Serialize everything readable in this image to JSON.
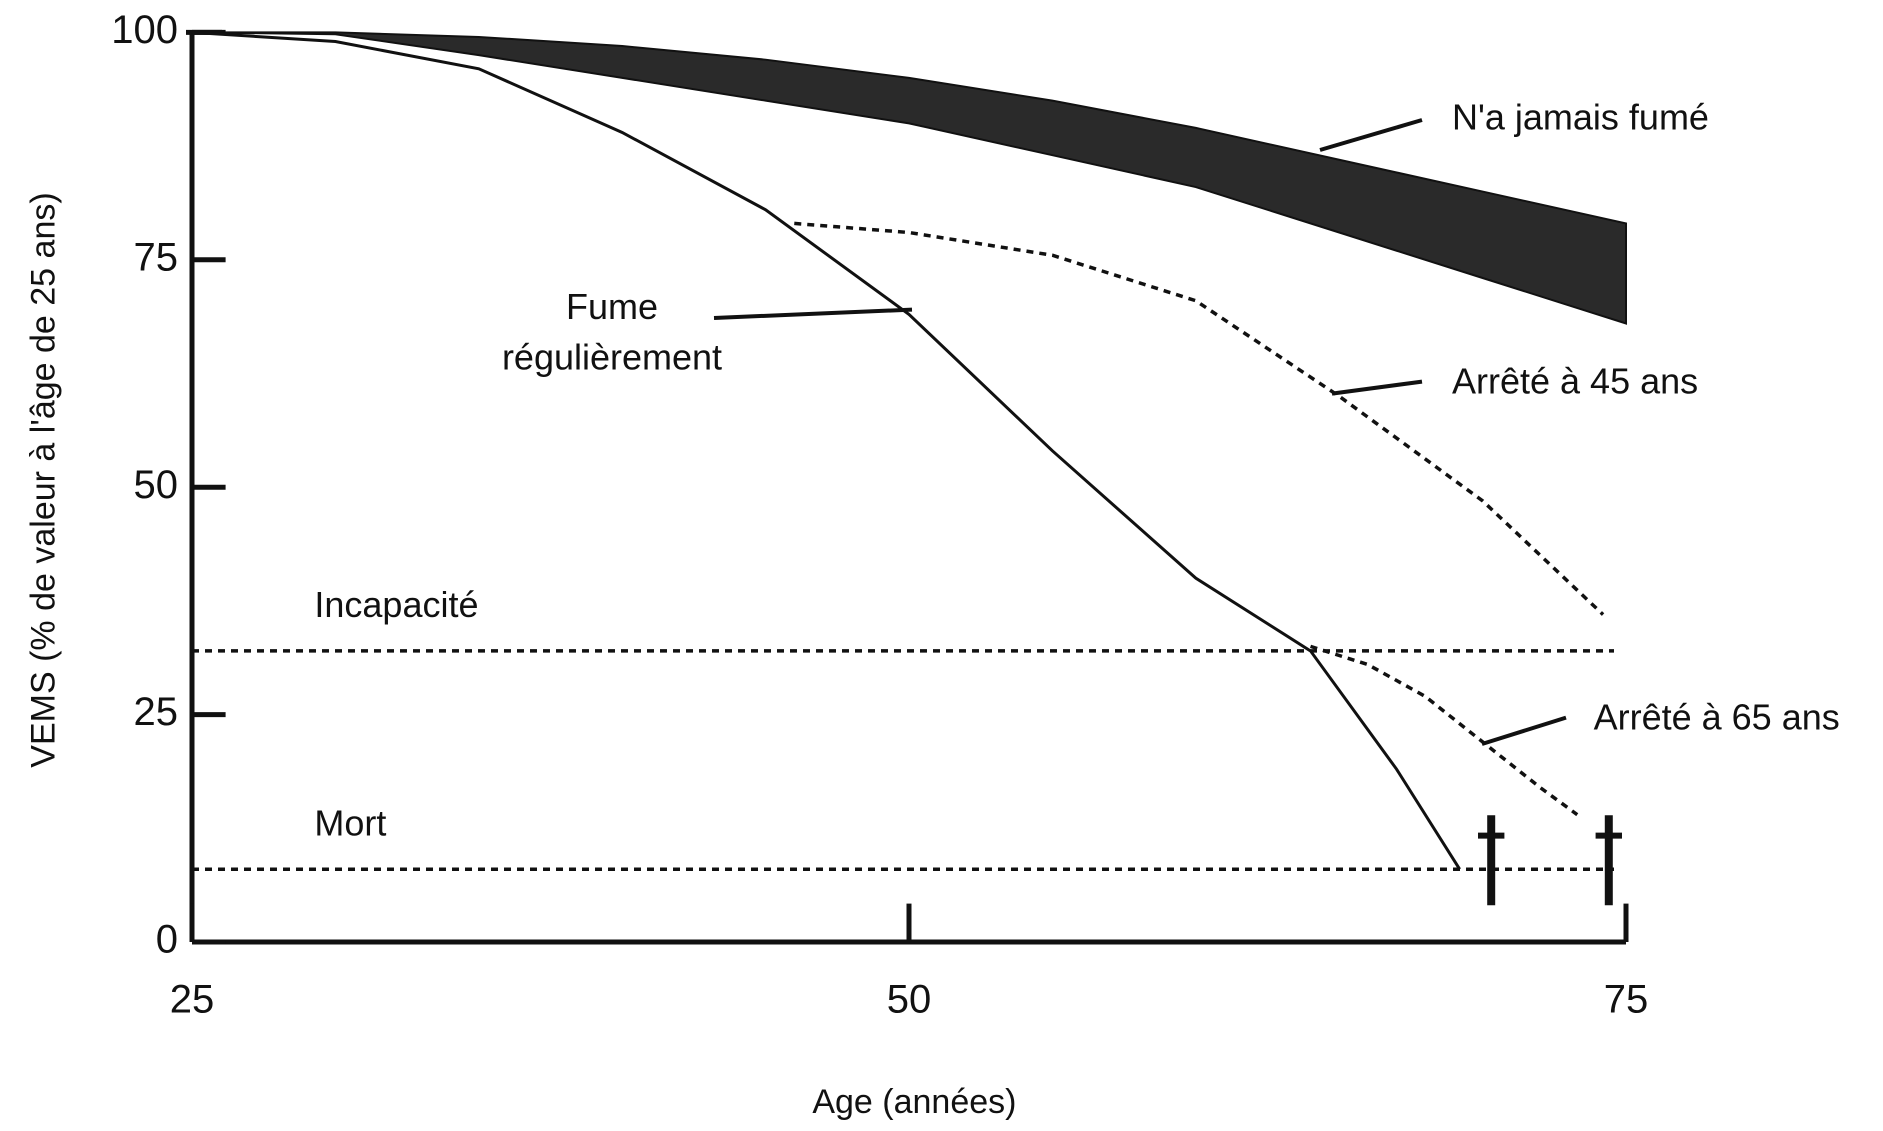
{
  "chart_data": {
    "type": "line",
    "xlabel": "Age (années)",
    "ylabel": "VEMS (% de valeur à l'âge de 25 ans)",
    "xlim": [
      25,
      75
    ],
    "ylim": [
      0,
      100
    ],
    "xticks": [
      25,
      50,
      75
    ],
    "yticks": [
      0,
      25,
      50,
      75,
      100
    ],
    "band": {
      "name": "N'a jamais fumé",
      "color": "#2a2a2a",
      "x": [
        25,
        30,
        35,
        40,
        45,
        50,
        55,
        60,
        65,
        70,
        75
      ],
      "upper": [
        100,
        100,
        99.5,
        98.5,
        97,
        95,
        92.5,
        89.5,
        86,
        82.5,
        79
      ],
      "lower": [
        100,
        99.8,
        97.5,
        95,
        92.5,
        90,
        86.5,
        83,
        78,
        73,
        68
      ]
    },
    "series": [
      {
        "name": [
          "Fume",
          "régulièrement"
        ],
        "color": "#111",
        "dashed": false,
        "x": [
          25,
          30,
          35,
          40,
          45,
          50,
          55,
          60,
          64,
          67,
          69.2
        ],
        "values": [
          100,
          99,
          96,
          89,
          80.5,
          69,
          54,
          40,
          32,
          19,
          8
        ]
      },
      {
        "name": "Arrêté à 45 ans",
        "color": "#111",
        "dashed": true,
        "x": [
          46,
          50,
          55,
          60,
          65,
          70,
          74.2
        ],
        "values": [
          79,
          78,
          75.5,
          70.5,
          60,
          48.5,
          36
        ]
      },
      {
        "name": "Arrêté à 65 ans",
        "color": "#111",
        "dashed": true,
        "x": [
          64,
          66,
          68,
          70,
          72,
          73.3
        ],
        "values": [
          32.5,
          30.5,
          27,
          22,
          17,
          14
        ]
      }
    ],
    "hlines": [
      {
        "name": "Incapacité",
        "value": 32
      },
      {
        "name": "Mort",
        "value": 8
      }
    ],
    "death_markers": {
      "x": [
        70.3,
        74.4
      ],
      "values": [
        8,
        8
      ]
    }
  }
}
